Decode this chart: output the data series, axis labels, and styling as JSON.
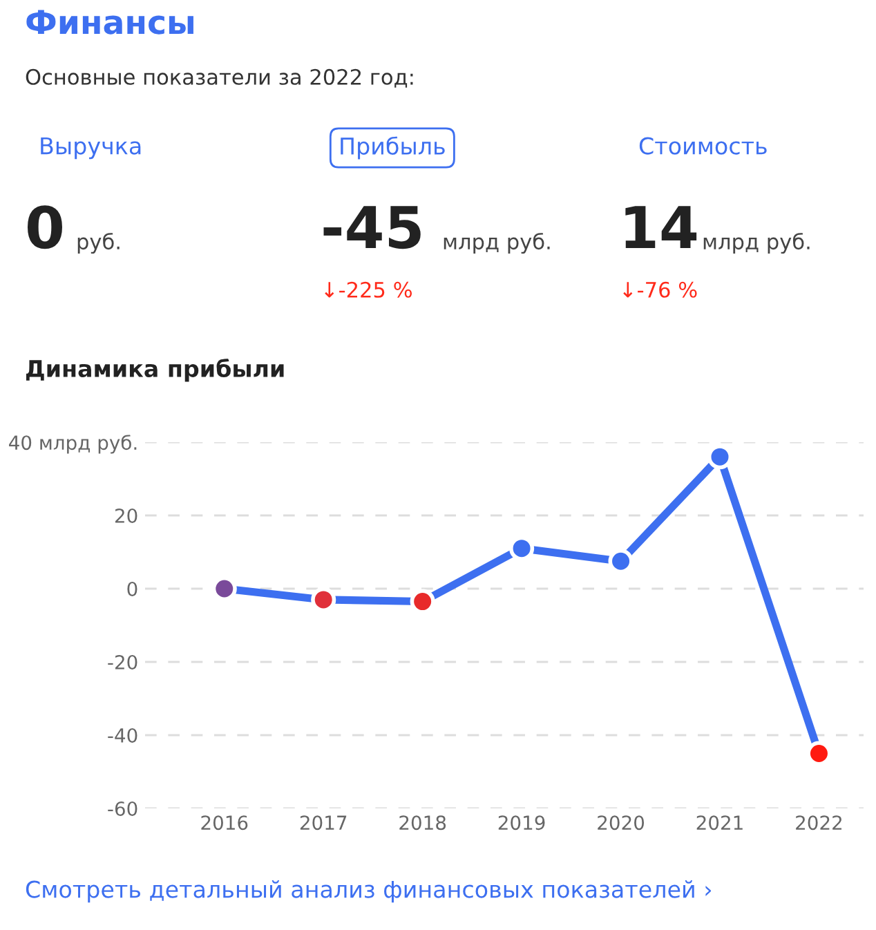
{
  "chart_data": [
    {
      "type": "other",
      "title": "Финансы",
      "subtitle": "Основные показатели за 2022 год:",
      "annotations": [
        "Выручка",
        "0",
        "руб.",
        "Прибыль",
        "-45",
        "млрд руб.",
        "↓-225 %",
        "Стоимость",
        "14",
        "млрд руб.",
        "↓-76 %"
      ]
    },
    {
      "type": "line",
      "title": "Динамика прибыли",
      "categories": [
        "2016",
        "2017",
        "2018",
        "2019",
        "2020",
        "2021",
        "2022"
      ],
      "series": [
        {
          "color": "#3d6ff0",
          "colors": [
            "#7a4a9a",
            "#e0303a",
            "#e82a2a",
            "#3d6ff0",
            "#3d6ff0",
            "#3d6ff0",
            "#ff1a10"
          ],
          "values": [
            0,
            -3,
            -3.5,
            11,
            7.5,
            36,
            -45
          ]
        }
      ],
      "ylim": [
        -60,
        40
      ],
      "yticks": [
        -60,
        -40,
        -20,
        0,
        20,
        {
          "value": 40,
          "label": "40 млрд руб."
        }
      ],
      "grid": "y",
      "marker": "circle",
      "line_style": "solid",
      "annotations": [
        "Смотреть детальный анализ финансовых показателей ›"
      ]
    }
  ]
}
